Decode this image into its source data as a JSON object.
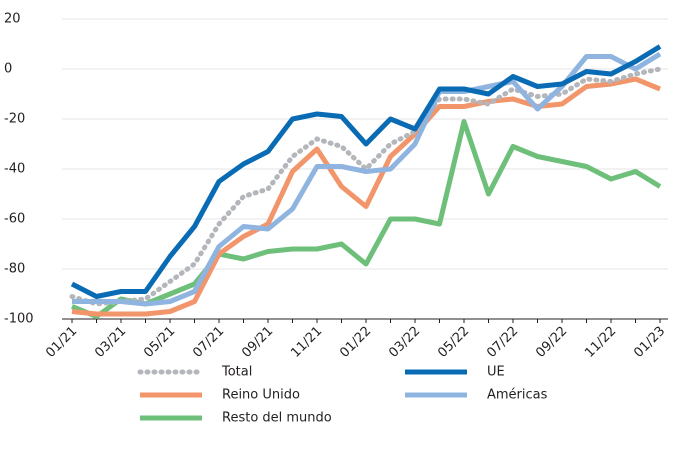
{
  "chart_data": {
    "type": "line",
    "categories": [
      "01/21",
      null,
      "03/21",
      null,
      "05/21",
      null,
      "07/21",
      null,
      "09/21",
      null,
      "11/21",
      null,
      "01/22",
      null,
      "03/22",
      null,
      "05/22",
      null,
      "07/22",
      null,
      "09/22",
      null,
      "11/22",
      null,
      "01/23"
    ],
    "series": [
      {
        "name": "Total",
        "color": "#b3b6ba",
        "style": "dotted",
        "values": [
          -91,
          -94,
          -93,
          -92,
          -85,
          -78,
          -62,
          -51,
          -48,
          -35,
          -28,
          -31,
          -40,
          -30,
          -25,
          -12,
          -12,
          -14,
          -8,
          -11,
          -10,
          -4,
          -5,
          -2,
          0
        ]
      },
      {
        "name": "UE",
        "color": "#0a6bb5",
        "style": "solid",
        "values": [
          -86,
          -91,
          -89,
          -89,
          -75,
          -63,
          -45,
          -38,
          -33,
          -20,
          -18,
          -19,
          -30,
          -20,
          -24,
          -8,
          -8,
          -10,
          -3,
          -7,
          -6,
          -1,
          -2,
          3,
          9
        ]
      },
      {
        "name": "Reino Unido",
        "color": "#f2956b",
        "style": "solid",
        "values": [
          -97,
          -98,
          -98,
          -98,
          -97,
          -93,
          -74,
          -67,
          -62,
          -41,
          -32,
          -47,
          -55,
          -35,
          -26,
          -15,
          -15,
          -13,
          -12,
          -15,
          -14,
          -7,
          -6,
          -4,
          -8
        ]
      },
      {
        "name": "Américas",
        "color": "#8fb4e0",
        "style": "solid",
        "values": [
          -93,
          -93,
          -93,
          -94,
          -93,
          -89,
          -71,
          -63,
          -64,
          -56,
          -39,
          -39,
          -41,
          -40,
          -30,
          -9,
          -9,
          -7,
          -5,
          -16,
          -7,
          5,
          5,
          0,
          6
        ]
      },
      {
        "name": "Resto del mundo",
        "color": "#6dbf7a",
        "style": "solid",
        "values": [
          -95,
          -99,
          -92,
          -94,
          -90,
          -86,
          -74,
          -76,
          -73,
          -72,
          -72,
          -70,
          -78,
          -60,
          -60,
          -62,
          -21,
          -50,
          -31,
          -35,
          -37,
          -39,
          -44,
          -41,
          -47
        ]
      }
    ],
    "ylim": [
      -100,
      20
    ],
    "yticks": [
      -100,
      -80,
      -60,
      -40,
      -20,
      0,
      20
    ],
    "grid": true
  }
}
